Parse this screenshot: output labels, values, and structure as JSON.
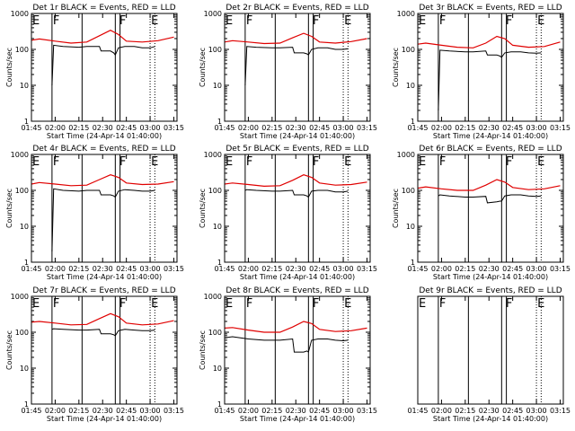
{
  "chart_data": [
    {
      "type": "line",
      "title": "Det 1r BLACK = Events, RED = LLD",
      "xlabel": "Start Time (24-Apr-14 01:40:00)",
      "ylabel": "Counts/sec",
      "yscale": "log",
      "ylim": [
        1,
        1000
      ],
      "xlim": [
        "01:45",
        "03:17"
      ],
      "xticks": [
        "01:45",
        "02:00",
        "02:15",
        "02:30",
        "02:45",
        "03:00",
        "03:15"
      ],
      "yticks": [
        "1",
        "10",
        "100",
        "1000"
      ],
      "markers": [
        {
          "label": "E",
          "time": "01:45"
        },
        {
          "label": "F",
          "time": "01:58"
        },
        {
          "label": "F",
          "time": "02:40"
        },
        {
          "label": "E",
          "time": "03:00"
        }
      ],
      "solid_lines": [
        "01:58",
        "02:17",
        "02:38",
        "02:41"
      ],
      "dotted_lines": [
        "01:45",
        "03:00",
        "03:03"
      ],
      "series": [
        {
          "name": "Events",
          "color": "#000000",
          "x": [
            "01:58",
            "01:59",
            "02:05",
            "02:15",
            "02:20",
            "02:28",
            "02:29",
            "02:35",
            "02:37",
            "02:38",
            "02:40",
            "02:44",
            "02:50",
            "02:55",
            "03:00",
            "03:03"
          ],
          "y": [
            10,
            130,
            120,
            115,
            120,
            120,
            90,
            90,
            80,
            70,
            110,
            120,
            120,
            110,
            110,
            120
          ]
        },
        {
          "name": "LLD",
          "color": "#e00000",
          "x": [
            "01:45",
            "01:50",
            "02:00",
            "02:10",
            "02:20",
            "02:28",
            "02:35",
            "02:40",
            "02:45",
            "02:55",
            "03:05",
            "03:15"
          ],
          "y": [
            180,
            195,
            170,
            150,
            160,
            240,
            340,
            260,
            170,
            160,
            175,
            220
          ]
        }
      ]
    },
    {
      "type": "line",
      "title": "Det 2r BLACK = Events, RED = LLD",
      "xlabel": "Start Time (24-Apr-14 01:40:00)",
      "ylabel": "Counts/sec",
      "yscale": "log",
      "ylim": [
        1,
        1000
      ],
      "xlim": [
        "01:45",
        "03:17"
      ],
      "xticks": [
        "01:45",
        "02:00",
        "02:15",
        "02:30",
        "02:45",
        "03:00",
        "03:15"
      ],
      "yticks": [
        "1",
        "10",
        "100",
        "1000"
      ],
      "markers": [
        {
          "label": "E",
          "time": "01:45"
        },
        {
          "label": "F",
          "time": "01:58"
        },
        {
          "label": "F",
          "time": "02:40"
        },
        {
          "label": "E",
          "time": "03:00"
        }
      ],
      "solid_lines": [
        "01:58",
        "02:17",
        "02:38",
        "02:41"
      ],
      "dotted_lines": [
        "01:45",
        "03:00",
        "03:03"
      ],
      "series": [
        {
          "name": "Events",
          "color": "#000000",
          "x": [
            "01:58",
            "01:59",
            "02:05",
            "02:15",
            "02:20",
            "02:28",
            "02:29",
            "02:35",
            "02:37",
            "02:38",
            "02:40",
            "02:44",
            "02:50",
            "02:55",
            "03:00",
            "03:03"
          ],
          "y": [
            10,
            120,
            115,
            110,
            110,
            115,
            80,
            80,
            75,
            70,
            100,
            110,
            110,
            100,
            100,
            105
          ]
        },
        {
          "name": "LLD",
          "color": "#e00000",
          "x": [
            "01:45",
            "01:50",
            "02:00",
            "02:10",
            "02:20",
            "02:28",
            "02:35",
            "02:40",
            "02:45",
            "02:55",
            "03:05",
            "03:15"
          ],
          "y": [
            160,
            175,
            160,
            145,
            150,
            210,
            280,
            230,
            160,
            150,
            165,
            200
          ]
        }
      ]
    },
    {
      "type": "line",
      "title": "Det 3r BLACK = Events, RED = LLD",
      "xlabel": "Start Time (24-Apr-14 01:40:00)",
      "ylabel": "Counts/sec",
      "yscale": "log",
      "ylim": [
        1,
        1000
      ],
      "xlim": [
        "01:45",
        "03:17"
      ],
      "xticks": [
        "01:45",
        "02:00",
        "02:15",
        "02:30",
        "02:45",
        "03:00",
        "03:15"
      ],
      "yticks": [
        "1",
        "10",
        "100",
        "1000"
      ],
      "markers": [
        {
          "label": "E",
          "time": "01:45"
        },
        {
          "label": "F",
          "time": "01:58"
        },
        {
          "label": "F",
          "time": "02:40"
        },
        {
          "label": "E",
          "time": "03:00"
        }
      ],
      "solid_lines": [
        "01:58",
        "02:17",
        "02:38",
        "02:41"
      ],
      "dotted_lines": [
        "01:45",
        "03:00",
        "03:03"
      ],
      "series": [
        {
          "name": "Events",
          "color": "#000000",
          "x": [
            "01:58",
            "01:59",
            "02:05",
            "02:15",
            "02:20",
            "02:28",
            "02:29",
            "02:35",
            "02:37",
            "02:38",
            "02:40",
            "02:44",
            "02:50",
            "02:55",
            "03:00",
            "03:03"
          ],
          "y": [
            2,
            95,
            90,
            85,
            85,
            90,
            70,
            70,
            65,
            60,
            80,
            85,
            85,
            80,
            78,
            80
          ]
        },
        {
          "name": "LLD",
          "color": "#e00000",
          "x": [
            "01:45",
            "01:50",
            "02:00",
            "02:10",
            "02:20",
            "02:28",
            "02:35",
            "02:40",
            "02:45",
            "02:55",
            "03:05",
            "03:15"
          ],
          "y": [
            140,
            150,
            130,
            115,
            110,
            150,
            230,
            200,
            130,
            115,
            120,
            160
          ]
        }
      ]
    },
    {
      "type": "line",
      "title": "Det 4r BLACK = Events, RED = LLD",
      "xlabel": "Start Time (24-Apr-14 01:40:00)",
      "ylabel": "Counts/sec",
      "yscale": "log",
      "ylim": [
        1,
        1000
      ],
      "xlim": [
        "01:45",
        "03:17"
      ],
      "xticks": [
        "01:45",
        "02:00",
        "02:15",
        "02:30",
        "02:45",
        "03:00",
        "03:15"
      ],
      "yticks": [
        "1",
        "10",
        "100",
        "1000"
      ],
      "markers": [
        {
          "label": "E",
          "time": "01:45"
        },
        {
          "label": "F",
          "time": "01:58"
        },
        {
          "label": "F",
          "time": "02:40"
        },
        {
          "label": "E",
          "time": "03:00"
        }
      ],
      "solid_lines": [
        "01:58",
        "02:17",
        "02:38",
        "02:41"
      ],
      "dotted_lines": [
        "01:45",
        "03:00",
        "03:03"
      ],
      "series": [
        {
          "name": "Events",
          "color": "#000000",
          "x": [
            "01:58",
            "01:59",
            "02:05",
            "02:15",
            "02:20",
            "02:28",
            "02:29",
            "02:35",
            "02:37",
            "02:38",
            "02:40",
            "02:44",
            "02:50",
            "02:55",
            "03:00",
            "03:03"
          ],
          "y": [
            2,
            110,
            100,
            95,
            100,
            100,
            75,
            75,
            70,
            65,
            95,
            105,
            100,
            95,
            95,
            100
          ]
        },
        {
          "name": "LLD",
          "color": "#e00000",
          "x": [
            "01:45",
            "01:50",
            "02:00",
            "02:10",
            "02:20",
            "02:28",
            "02:35",
            "02:40",
            "02:45",
            "02:55",
            "03:05",
            "03:15"
          ],
          "y": [
            150,
            165,
            150,
            135,
            140,
            200,
            270,
            230,
            160,
            145,
            150,
            175
          ]
        }
      ]
    },
    {
      "type": "line",
      "title": "Det 5r BLACK = Events, RED = LLD",
      "xlabel": "Start Time (24-Apr-14 01:40:00)",
      "ylabel": "Counts/sec",
      "yscale": "log",
      "ylim": [
        1,
        1000
      ],
      "xlim": [
        "01:45",
        "03:17"
      ],
      "xticks": [
        "01:45",
        "02:00",
        "02:15",
        "02:30",
        "02:45",
        "03:00",
        "03:15"
      ],
      "yticks": [
        "1",
        "10",
        "100",
        "1000"
      ],
      "markers": [
        {
          "label": "E",
          "time": "01:45"
        },
        {
          "label": "F",
          "time": "01:58"
        },
        {
          "label": "F",
          "time": "02:40"
        },
        {
          "label": "E",
          "time": "03:00"
        }
      ],
      "solid_lines": [
        "01:58",
        "02:17",
        "02:38",
        "02:41"
      ],
      "dotted_lines": [
        "01:45",
        "03:00",
        "03:03"
      ],
      "series": [
        {
          "name": "Events",
          "color": "#000000",
          "x": [
            "01:58",
            "01:59",
            "02:05",
            "02:15",
            "02:20",
            "02:28",
            "02:29",
            "02:35",
            "02:37",
            "02:38",
            "02:40",
            "02:44",
            "02:50",
            "02:55",
            "03:00",
            "03:03"
          ],
          "y": [
            100,
            105,
            100,
            95,
            95,
            100,
            75,
            75,
            70,
            65,
            95,
            100,
            100,
            90,
            90,
            95
          ]
        },
        {
          "name": "LLD",
          "color": "#e00000",
          "x": [
            "01:45",
            "01:50",
            "02:00",
            "02:10",
            "02:20",
            "02:28",
            "02:35",
            "02:40",
            "02:45",
            "02:55",
            "03:05",
            "03:15"
          ],
          "y": [
            150,
            160,
            145,
            130,
            135,
            190,
            270,
            230,
            160,
            140,
            145,
            170
          ]
        }
      ]
    },
    {
      "type": "line",
      "title": "Det 6r BLACK = Events, RED = LLD",
      "xlabel": "Start Time (24-Apr-14 01:40:00)",
      "ylabel": "Counts/sec",
      "yscale": "log",
      "ylim": [
        1,
        1000
      ],
      "xlim": [
        "01:45",
        "03:17"
      ],
      "xticks": [
        "01:45",
        "02:00",
        "02:15",
        "02:30",
        "02:45",
        "03:00",
        "03:15"
      ],
      "yticks": [
        "1",
        "10",
        "100",
        "1000"
      ],
      "markers": [
        {
          "label": "E",
          "time": "01:45"
        },
        {
          "label": "F",
          "time": "01:58"
        },
        {
          "label": "F",
          "time": "02:40"
        },
        {
          "label": "E",
          "time": "03:00"
        }
      ],
      "solid_lines": [
        "01:58",
        "02:17",
        "02:38",
        "02:41"
      ],
      "dotted_lines": [
        "01:45",
        "03:00",
        "03:03"
      ],
      "series": [
        {
          "name": "Events",
          "color": "#000000",
          "x": [
            "01:58",
            "01:59",
            "02:05",
            "02:15",
            "02:20",
            "02:28",
            "02:29",
            "02:35",
            "02:37",
            "02:38",
            "02:40",
            "02:44",
            "02:50",
            "02:55",
            "03:00",
            "03:03"
          ],
          "y": [
            70,
            75,
            70,
            65,
            65,
            68,
            45,
            48,
            50,
            50,
            70,
            75,
            75,
            70,
            68,
            70
          ]
        },
        {
          "name": "LLD",
          "color": "#e00000",
          "x": [
            "01:45",
            "01:50",
            "02:00",
            "02:10",
            "02:20",
            "02:28",
            "02:35",
            "02:40",
            "02:45",
            "02:55",
            "03:05",
            "03:15"
          ],
          "y": [
            115,
            125,
            110,
            100,
            100,
            140,
            200,
            170,
            120,
            105,
            110,
            135
          ]
        }
      ]
    },
    {
      "type": "line",
      "title": "Det 7r BLACK = Events, RED = LLD",
      "xlabel": "Start Time (24-Apr-14 01:40:00)",
      "ylabel": "Counts/sec",
      "yscale": "log",
      "ylim": [
        1,
        1000
      ],
      "xlim": [
        "01:45",
        "03:17"
      ],
      "xticks": [
        "01:45",
        "02:00",
        "02:15",
        "02:30",
        "02:45",
        "03:00",
        "03:15"
      ],
      "yticks": [
        "1",
        "10",
        "100",
        "1000"
      ],
      "markers": [
        {
          "label": "E",
          "time": "01:45"
        },
        {
          "label": "F",
          "time": "01:58"
        },
        {
          "label": "F",
          "time": "02:40"
        },
        {
          "label": "E",
          "time": "03:00"
        }
      ],
      "solid_lines": [
        "01:58",
        "02:17",
        "02:38",
        "02:41"
      ],
      "dotted_lines": [
        "01:45",
        "03:00",
        "03:03"
      ],
      "series": [
        {
          "name": "Events",
          "color": "#000000",
          "x": [
            "01:58",
            "01:59",
            "02:05",
            "02:15",
            "02:20",
            "02:28",
            "02:29",
            "02:35",
            "02:37",
            "02:38",
            "02:40",
            "02:44",
            "02:50",
            "02:55",
            "03:00",
            "03:03"
          ],
          "y": [
            120,
            125,
            120,
            115,
            115,
            120,
            90,
            90,
            85,
            80,
            110,
            120,
            115,
            110,
            110,
            115
          ]
        },
        {
          "name": "LLD",
          "color": "#e00000",
          "x": [
            "01:45",
            "01:50",
            "02:00",
            "02:10",
            "02:20",
            "02:28",
            "02:35",
            "02:40",
            "02:45",
            "02:55",
            "03:05",
            "03:15"
          ],
          "y": [
            190,
            200,
            180,
            160,
            165,
            240,
            330,
            270,
            180,
            160,
            170,
            210
          ]
        }
      ]
    },
    {
      "type": "line",
      "title": "Det 8r BLACK = Events, RED = LLD",
      "xlabel": "Start Time (24-Apr-14 01:40:00)",
      "ylabel": "Counts/sec",
      "yscale": "log",
      "ylim": [
        1,
        1000
      ],
      "xlim": [
        "01:45",
        "03:17"
      ],
      "xticks": [
        "01:45",
        "02:00",
        "02:15",
        "02:30",
        "02:45",
        "03:00",
        "03:15"
      ],
      "yticks": [
        "1",
        "10",
        "100",
        "1000"
      ],
      "markers": [
        {
          "label": "E",
          "time": "01:45"
        },
        {
          "label": "F",
          "time": "01:58"
        },
        {
          "label": "F",
          "time": "02:40"
        },
        {
          "label": "E",
          "time": "03:00"
        }
      ],
      "solid_lines": [
        "01:58",
        "02:17",
        "02:38",
        "02:41"
      ],
      "dotted_lines": [
        "01:45",
        "03:00",
        "03:03"
      ],
      "series": [
        {
          "name": "Events",
          "color": "#000000",
          "x": [
            "01:45",
            "01:50",
            "02:00",
            "02:10",
            "02:20",
            "02:28",
            "02:29",
            "02:35",
            "02:37",
            "02:38",
            "02:40",
            "02:44",
            "02:50",
            "02:55",
            "03:00",
            "03:03"
          ],
          "y": [
            70,
            75,
            65,
            60,
            60,
            65,
            28,
            28,
            30,
            28,
            60,
            65,
            65,
            60,
            58,
            60
          ]
        },
        {
          "name": "LLD",
          "color": "#e00000",
          "x": [
            "01:45",
            "01:50",
            "02:00",
            "02:10",
            "02:20",
            "02:28",
            "02:35",
            "02:40",
            "02:45",
            "02:55",
            "03:05",
            "03:15"
          ],
          "y": [
            130,
            135,
            115,
            100,
            100,
            140,
            200,
            175,
            120,
            105,
            110,
            130
          ]
        }
      ]
    },
    {
      "type": "line",
      "title": "Det 9r BLACK = Events, RED = LLD",
      "xlabel": "Start Time (24-Apr-14 01:40:00)",
      "ylabel": "",
      "yscale": "log",
      "ylim": [
        1,
        1000
      ],
      "xlim": [
        "01:45",
        "03:17"
      ],
      "xticks": [
        "01:45",
        "02:00",
        "02:15",
        "02:30",
        "02:45",
        "03:00",
        "03:15"
      ],
      "yticks": [],
      "markers": [
        {
          "label": "E",
          "time": "01:45"
        },
        {
          "label": "F",
          "time": "01:58"
        },
        {
          "label": "F",
          "time": "02:40"
        },
        {
          "label": "E",
          "time": "03:00"
        }
      ],
      "solid_lines": [
        "01:58",
        "02:17",
        "02:38",
        "02:41"
      ],
      "dotted_lines": [
        "01:45",
        "03:00",
        "03:03"
      ],
      "series": []
    }
  ]
}
